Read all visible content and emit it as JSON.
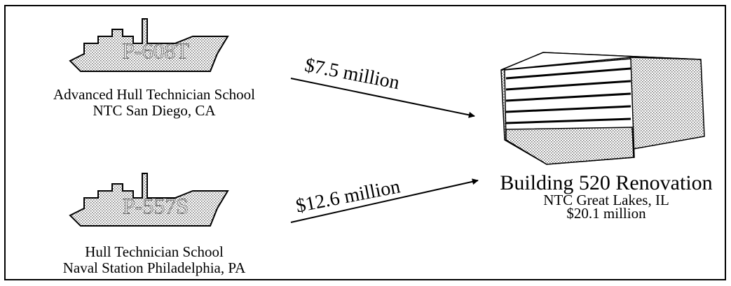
{
  "sources": [
    {
      "code": "P-608T",
      "name": "Advanced Hull Technician School",
      "location": "NTC San Diego, CA"
    },
    {
      "code": "P-557S",
      "name": "Hull Technician School",
      "location": "Naval Station Philadelphia, PA"
    }
  ],
  "flows": [
    {
      "label": "$7.5 million"
    },
    {
      "label": "$12.6 million"
    }
  ],
  "destination": {
    "title": "Building 520 Renovation",
    "location": "NTC Great Lakes, IL",
    "cost": "$20.1 million"
  }
}
